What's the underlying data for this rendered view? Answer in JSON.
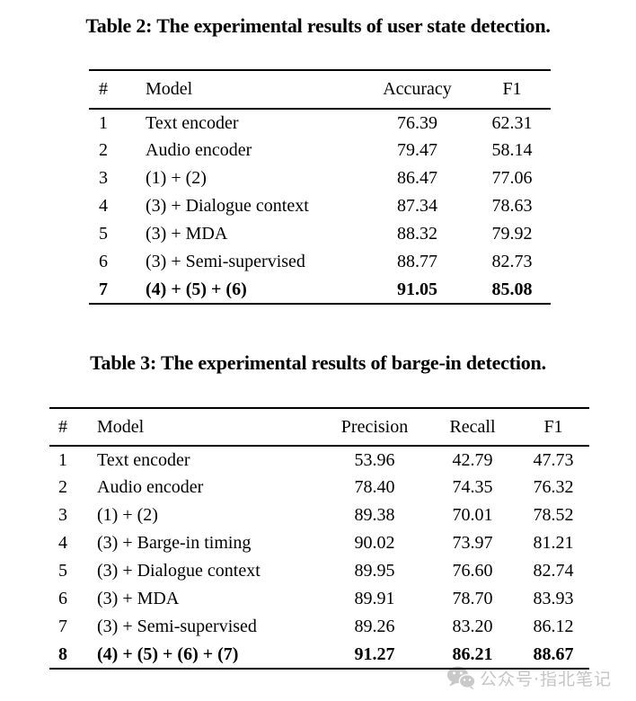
{
  "page": {
    "background": "#ffffff",
    "text_color": "#000000",
    "rule_color": "#000000"
  },
  "tables": [
    {
      "caption": "Table 2: The experimental results of user state detection.",
      "columns": [
        "#",
        "Model",
        "Accuracy",
        "F1"
      ],
      "rows": [
        {
          "num": "1",
          "model": "Text encoder",
          "values": [
            "76.39",
            "62.31"
          ],
          "bold": false
        },
        {
          "num": "2",
          "model": "Audio encoder",
          "values": [
            "79.47",
            "58.14"
          ],
          "bold": false
        },
        {
          "num": "3",
          "model": "(1) + (2)",
          "values": [
            "86.47",
            "77.06"
          ],
          "bold": false
        },
        {
          "num": "4",
          "model": "(3) + Dialogue context",
          "values": [
            "87.34",
            "78.63"
          ],
          "bold": false
        },
        {
          "num": "5",
          "model": "(3) + MDA",
          "values": [
            "88.32",
            "79.92"
          ],
          "bold": false
        },
        {
          "num": "6",
          "model": "(3) + Semi-supervised",
          "values": [
            "88.77",
            "82.73"
          ],
          "bold": false
        },
        {
          "num": "7",
          "model": "(4) + (5) + (6)",
          "values": [
            "91.05",
            "85.08"
          ],
          "bold": true
        }
      ]
    },
    {
      "caption": "Table 3: The experimental results of barge-in detection.",
      "columns": [
        "#",
        "Model",
        "Precision",
        "Recall",
        "F1"
      ],
      "rows": [
        {
          "num": "1",
          "model": "Text encoder",
          "values": [
            "53.96",
            "42.79",
            "47.73"
          ],
          "bold": false
        },
        {
          "num": "2",
          "model": "Audio encoder",
          "values": [
            "78.40",
            "74.35",
            "76.32"
          ],
          "bold": false
        },
        {
          "num": "3",
          "model": "(1) + (2)",
          "values": [
            "89.38",
            "70.01",
            "78.52"
          ],
          "bold": false
        },
        {
          "num": "4",
          "model": "(3) + Barge-in timing",
          "values": [
            "90.02",
            "73.97",
            "81.21"
          ],
          "bold": false
        },
        {
          "num": "5",
          "model": "(3) + Dialogue context",
          "values": [
            "89.95",
            "76.60",
            "82.74"
          ],
          "bold": false
        },
        {
          "num": "6",
          "model": "(3) + MDA",
          "values": [
            "89.91",
            "78.70",
            "83.93"
          ],
          "bold": false
        },
        {
          "num": "7",
          "model": "(3) + Semi-supervised",
          "values": [
            "89.26",
            "83.20",
            "86.12"
          ],
          "bold": false
        },
        {
          "num": "8",
          "model": "(4) + (5) + (6) + (7)",
          "values": [
            "91.27",
            "86.21",
            "88.67"
          ],
          "bold": true
        }
      ]
    }
  ],
  "watermark": {
    "icon": "wechat-icon",
    "text": "公众号·指北笔记",
    "color": "#c5c5c5"
  }
}
